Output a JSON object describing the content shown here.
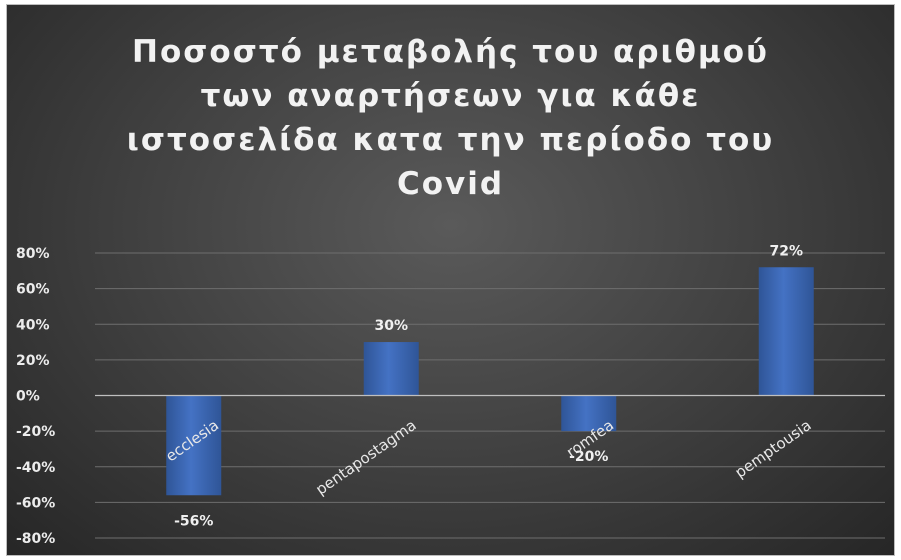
{
  "title_lines": [
    "Ποσοστό μεταβολής του αριθμού",
    "των αναρτήσεων για κάθε",
    "ιστοσελίδα κατα την περίοδο του",
    "Covid"
  ],
  "colors": {
    "bar": "#4472c4",
    "bar_dark": "#2f5597",
    "grid": "#6e6e6e",
    "zero_line": "#bfbfbf"
  },
  "chart_data": {
    "type": "bar",
    "title": "Ποσοστό μεταβολής του αριθμού των αναρτήσεων για κάθε ιστοσελίδα κατα την περίοδο του Covid",
    "xlabel": "",
    "ylabel": "",
    "categories": [
      "ecclesia",
      "pentapostagma",
      "romfea",
      "pemptousia"
    ],
    "values": [
      -56,
      30,
      -20,
      72
    ],
    "value_labels": [
      "-56%",
      "30%",
      "-20%",
      "72%"
    ],
    "ylim": [
      -80,
      80
    ],
    "yticks": [
      80,
      60,
      40,
      20,
      0,
      -20,
      -40,
      -60,
      -80
    ],
    "ytick_labels": [
      "80%",
      "60%",
      "40%",
      "20%",
      "0%",
      "-20%",
      "-40%",
      "-60%",
      "-80%"
    ],
    "grid": true,
    "legend": "none"
  }
}
